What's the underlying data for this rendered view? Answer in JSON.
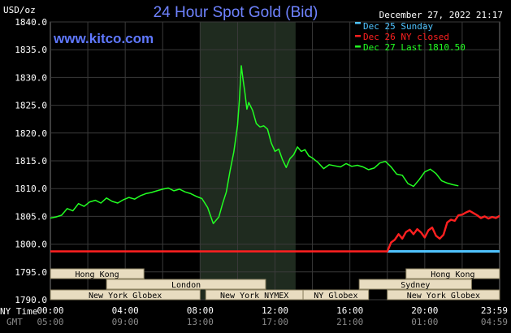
{
  "header": {
    "title": "24 Hour Spot Gold (Bid)",
    "site": "www.kitco.com",
    "timestamp": "December 27, 2022 21:17",
    "unit": "USD/oz"
  },
  "legend": [
    {
      "label": "Dec 25 Sunday",
      "color": "#4fc3ff"
    },
    {
      "label": "Dec 26 NY closed",
      "color": "#ff2020"
    },
    {
      "label": "Dec 27 Last 1810.50",
      "color": "#22ff22"
    }
  ],
  "axis_labels": {
    "ny_time": "NY Time",
    "gmt": "GMT"
  },
  "markets": [
    {
      "name": "Hong Kong",
      "start": 0.0,
      "end": 5.0,
      "row": 1
    },
    {
      "name": "London",
      "start": 3.0,
      "end": 11.5,
      "row": 2
    },
    {
      "name": "New York Globex",
      "start": 0.0,
      "end": 8.0,
      "row": 3
    },
    {
      "name": "New York NYMEX",
      "start": 8.3,
      "end": 13.5,
      "row": 3
    },
    {
      "name": "NY Globex",
      "start": 13.5,
      "end": 17.0,
      "row": 3
    },
    {
      "name": "Hong Kong",
      "start": 19.0,
      "end": 24.0,
      "row": 1
    },
    {
      "name": "Sydney",
      "start": 16.5,
      "end": 22.5,
      "row": 2
    },
    {
      "name": "New York Globex",
      "start": 18.0,
      "end": 24.0,
      "row": 3
    }
  ],
  "chart_data": {
    "type": "line",
    "title": "24 Hour Spot Gold (Bid)",
    "ylabel": "USD/oz",
    "ylim": [
      1790.0,
      1840.0
    ],
    "xlim": [
      0,
      24
    ],
    "yticks": [
      "1840.0",
      "1835.0",
      "1830.0",
      "1825.0",
      "1820.0",
      "1815.0",
      "1810.0",
      "1805.0",
      "1800.0",
      "1795.0",
      "1790.0"
    ],
    "xticks_ny": [
      "00:00",
      "04:00",
      "08:00",
      "12:00",
      "16:00",
      "20:00",
      "23:59"
    ],
    "xticks_gmt": [
      "05:00",
      "09:00",
      "13:00",
      "17:00",
      "21:00",
      "01:00",
      "04:59"
    ],
    "shaded_region": [
      8.0,
      13.1
    ],
    "grid": true,
    "series": [
      {
        "name": "Dec 25 Sunday",
        "color": "#4fc3ff",
        "x": [
          18.0,
          24.0
        ],
        "y": [
          1798.7,
          1798.7
        ]
      },
      {
        "name": "Dec 26 NY closed",
        "color": "#ff2020",
        "x": [
          0.0,
          18.0,
          18.2,
          18.4,
          18.6,
          18.8,
          19.0,
          19.2,
          19.4,
          19.6,
          19.8,
          20.0,
          20.2,
          20.4,
          20.6,
          20.8,
          21.0,
          21.2,
          21.4,
          21.6,
          21.8,
          22.0,
          22.2,
          22.4,
          22.6,
          22.8,
          23.0,
          23.2,
          23.4,
          23.6,
          23.8,
          24.0
        ],
        "y": [
          1798.7,
          1798.7,
          1800.3,
          1800.8,
          1801.8,
          1801.0,
          1802.2,
          1802.6,
          1801.8,
          1802.7,
          1802.1,
          1801.2,
          1802.5,
          1803.0,
          1801.5,
          1801.0,
          1801.7,
          1803.9,
          1804.4,
          1804.2,
          1805.2,
          1805.3,
          1805.7,
          1806.0,
          1805.6,
          1805.2,
          1804.7,
          1805.0,
          1804.6,
          1804.9,
          1804.7,
          1805.1
        ]
      },
      {
        "name": "Dec 27 Last 1810.50",
        "color": "#22ff22",
        "x": [
          0.0,
          0.3,
          0.6,
          0.9,
          1.2,
          1.5,
          1.8,
          2.1,
          2.4,
          2.7,
          3.0,
          3.3,
          3.6,
          3.9,
          4.2,
          4.5,
          4.8,
          5.1,
          5.4,
          5.7,
          6.0,
          6.3,
          6.6,
          6.9,
          7.2,
          7.5,
          7.8,
          8.1,
          8.4,
          8.7,
          9.0,
          9.2,
          9.4,
          9.6,
          9.8,
          10.0,
          10.1,
          10.2,
          10.3,
          10.4,
          10.5,
          10.6,
          10.8,
          11.0,
          11.2,
          11.4,
          11.6,
          11.8,
          12.0,
          12.2,
          12.4,
          12.6,
          12.8,
          13.0,
          13.2,
          13.4,
          13.6,
          13.8,
          14.0,
          14.3,
          14.6,
          14.9,
          15.2,
          15.5,
          15.8,
          16.1,
          16.4,
          16.7,
          17.0,
          17.3,
          17.6,
          17.9,
          18.2,
          18.5,
          18.8,
          19.1,
          19.4,
          19.7,
          20.0,
          20.3,
          20.6,
          20.9,
          21.2,
          21.5,
          21.8
        ],
        "y": [
          1804.7,
          1804.9,
          1805.2,
          1806.4,
          1806.0,
          1807.3,
          1806.8,
          1807.6,
          1807.9,
          1807.4,
          1808.3,
          1807.7,
          1807.4,
          1808.0,
          1808.4,
          1808.1,
          1808.7,
          1809.1,
          1809.3,
          1809.6,
          1809.9,
          1810.1,
          1809.6,
          1809.9,
          1809.4,
          1809.1,
          1808.6,
          1808.2,
          1806.6,
          1803.7,
          1804.9,
          1807.3,
          1809.4,
          1813.2,
          1816.6,
          1821.4,
          1826.0,
          1832.1,
          1829.5,
          1827.1,
          1824.3,
          1825.5,
          1824.1,
          1821.7,
          1821.1,
          1821.3,
          1820.7,
          1818.2,
          1816.7,
          1817.1,
          1815.2,
          1813.8,
          1815.4,
          1816.1,
          1817.5,
          1816.7,
          1817.0,
          1815.9,
          1815.5,
          1814.7,
          1813.6,
          1814.3,
          1814.1,
          1813.9,
          1814.5,
          1814.0,
          1814.2,
          1813.9,
          1813.4,
          1813.7,
          1814.6,
          1814.9,
          1813.9,
          1812.6,
          1812.4,
          1810.9,
          1810.4,
          1811.6,
          1813.0,
          1813.5,
          1812.7,
          1811.4,
          1811.0,
          1810.7,
          1810.5
        ]
      }
    ]
  }
}
